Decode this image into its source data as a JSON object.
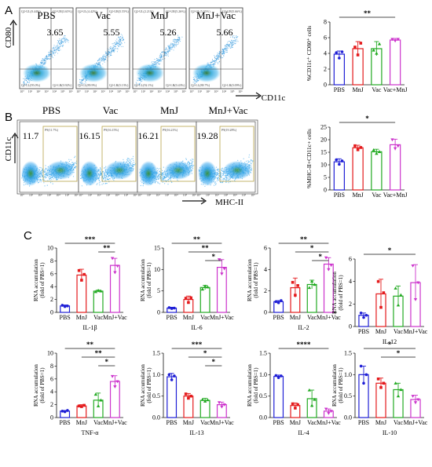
{
  "figure": {
    "panels": {
      "A": {
        "letter": "A"
      },
      "B": {
        "letter": "B"
      },
      "C": {
        "letter": "C"
      }
    }
  },
  "panelA": {
    "flow": {
      "y_axis": "CD80",
      "x_axis": "CD11c",
      "plots": [
        {
          "title": "PBS",
          "value": "3.65"
        },
        {
          "title": "Vac",
          "value": "5.55"
        },
        {
          "title": "MnJ",
          "value": "5.26"
        },
        {
          "title": "MnJ+Vac",
          "value": "5.66"
        }
      ]
    },
    "quad_labels": [
      {
        "ul": "Q2-UL(0.44%)",
        "ur": "Q2-UR(3.65%)",
        "ll": "Q2-LL(95.0%)",
        "lr": "Q2-LR(0.92%)"
      },
      {
        "ul": "Q2-UL(4.42%)",
        "ur": "Q2-UR(5.55%)",
        "ll": "Q2-LL(89.9%)",
        "lr": "Q2-LR(0.13%)"
      },
      {
        "ul": "Q2-UL(2.21%)",
        "ur": "Q2-UR(5.26%)",
        "ll": "Q2-LL(92.1%)",
        "lr": "Q2-LR(0.43%)"
      },
      {
        "ul": "Q2-UL(5.55%)",
        "ur": "Q2-UR(5.66%)",
        "ll": "Q2-LL(88.7%)",
        "lr": "Q2-LR(0.09%)"
      }
    ]
  },
  "panelB": {
    "flow": {
      "y_axis": "CD11c",
      "x_axis": "MHC-II",
      "plots": [
        {
          "title": "PBS",
          "value": "11.7",
          "gate": "P9(11.7%)"
        },
        {
          "title": "Vac",
          "value": "16.15",
          "gate": "P9(16.15%)"
        },
        {
          "title": "MnJ",
          "value": "16.21",
          "gate": "P9(16.21%)"
        },
        {
          "title": "MnJ+Vac",
          "value": "19.28",
          "gate": "P9(19.28%)"
        }
      ]
    }
  },
  "tick_labels": {
    "flow_x": [
      "10⁰",
      "10¹",
      "10²",
      "10³",
      "10⁴",
      "10⁵",
      "10⁶"
    ]
  },
  "chart_data": [
    {
      "type": "bar",
      "panel": "A",
      "ylabel": "%CD11c⁺ CD80⁺ cells",
      "categories": [
        "PBS",
        "MnJ",
        "Vac",
        "Vac+MnJ"
      ],
      "values": [
        3.9,
        4.6,
        4.6,
        5.7
      ],
      "errors": [
        0.4,
        0.9,
        0.9,
        0.2
      ],
      "points": [
        [
          4.1,
          3.4,
          4.2
        ],
        [
          4.8,
          3.8,
          5.3
        ],
        [
          4.4,
          4.0,
          5.2
        ],
        [
          5.8,
          5.6,
          5.8
        ]
      ],
      "ylim": [
        0,
        8
      ],
      "yticks": [
        0,
        2,
        4,
        6,
        8
      ],
      "colors": [
        "#1f1fd6",
        "#e41a1c",
        "#22aa22",
        "#cc33cc"
      ],
      "significance": [
        {
          "from": 0,
          "to": 3,
          "label": "**"
        }
      ]
    },
    {
      "type": "bar",
      "panel": "B",
      "ylabel": "%MHC-II+CD11c+ cells",
      "categories": [
        "PBS",
        "MnJ",
        "Vac",
        "Vac+MnJ"
      ],
      "values": [
        11.2,
        16.8,
        15.2,
        18.0
      ],
      "errors": [
        1.2,
        1.0,
        1.0,
        2.2
      ],
      "points": [
        [
          12.0,
          10.2,
          11.6
        ],
        [
          17.6,
          16.0,
          16.9
        ],
        [
          15.9,
          14.5,
          15.2
        ],
        [
          20.0,
          16.5,
          17.5
        ]
      ],
      "ylim": [
        0,
        25
      ],
      "yticks": [
        0,
        5,
        10,
        15,
        20,
        25
      ],
      "colors": [
        "#1f1fd6",
        "#e41a1c",
        "#22aa22",
        "#cc33cc"
      ],
      "significance": [
        {
          "from": 0,
          "to": 3,
          "label": "*"
        }
      ]
    },
    {
      "type": "bar",
      "panel": "C",
      "title": "IL-1β",
      "ylabel": "RNA accumulation (fold of PBS=1)",
      "categories": [
        "PBS",
        "MnJ",
        "Vac",
        "MnJ+Vac"
      ],
      "values": [
        1.0,
        5.8,
        3.3,
        7.3
      ],
      "errors": [
        0.15,
        0.9,
        0.15,
        1.1
      ],
      "points": [
        [
          1.1,
          0.9,
          1.0
        ],
        [
          6.5,
          5.0,
          5.9
        ],
        [
          3.2,
          3.4,
          3.3
        ],
        [
          8.4,
          6.2,
          7.2
        ]
      ],
      "ylim": [
        0,
        10
      ],
      "yticks": [
        0,
        2,
        4,
        6,
        8,
        10
      ],
      "colors": [
        "#1f1fd6",
        "#e41a1c",
        "#22aa22",
        "#cc33cc"
      ],
      "significance": [
        {
          "from": 0,
          "to": 3,
          "label": "***"
        },
        {
          "from": 2,
          "to": 3,
          "label": "**"
        }
      ]
    },
    {
      "type": "bar",
      "panel": "C",
      "title": "IL-6",
      "ylabel": "RNA accumulation (fold of PBS=1)",
      "categories": [
        "PBS",
        "MnJ",
        "Vac",
        "MnJ+Vac"
      ],
      "values": [
        1.0,
        3.0,
        5.8,
        10.5
      ],
      "errors": [
        0.2,
        0.8,
        0.5,
        1.8
      ],
      "points": [
        [
          1.1,
          0.9,
          1.0
        ],
        [
          3.3,
          2.3,
          3.4
        ],
        [
          5.4,
          6.1,
          5.9
        ],
        [
          12.3,
          9.0,
          10.2
        ]
      ],
      "ylim": [
        0,
        15
      ],
      "yticks": [
        0,
        5,
        10,
        15
      ],
      "colors": [
        "#1f1fd6",
        "#e41a1c",
        "#22aa22",
        "#cc33cc"
      ],
      "significance": [
        {
          "from": 0,
          "to": 3,
          "label": "**"
        },
        {
          "from": 1,
          "to": 3,
          "label": "**"
        },
        {
          "from": 2,
          "to": 3,
          "label": "*"
        }
      ]
    },
    {
      "type": "bar",
      "panel": "C",
      "title": "IL-2",
      "ylabel": "RNA accumulation (fold of PBS=1)",
      "categories": [
        "PBS",
        "MnJ",
        "Vac",
        "MnJ+Vac"
      ],
      "values": [
        1.0,
        2.3,
        2.6,
        4.5
      ],
      "errors": [
        0.1,
        0.9,
        0.4,
        0.6
      ],
      "points": [
        [
          1.0,
          0.9,
          1.1
        ],
        [
          2.8,
          1.6,
          2.5
        ],
        [
          2.3,
          2.9,
          2.6
        ],
        [
          5.1,
          4.0,
          4.4
        ]
      ],
      "ylim": [
        0,
        6
      ],
      "yticks": [
        0,
        2,
        4,
        6
      ],
      "colors": [
        "#1f1fd6",
        "#e41a1c",
        "#22aa22",
        "#cc33cc"
      ],
      "significance": [
        {
          "from": 0,
          "to": 3,
          "label": "**"
        },
        {
          "from": 1,
          "to": 3,
          "label": "*"
        },
        {
          "from": 2,
          "to": 3,
          "label": "*"
        }
      ]
    },
    {
      "type": "bar",
      "panel": "C",
      "title": "IL-12",
      "ylabel": "RNA accumulation (fold of PBS=1)",
      "categories": [
        "PBS",
        "MnJ",
        "Vac",
        "MnJ+Vac"
      ],
      "values": [
        1.0,
        2.9,
        2.7,
        3.9
      ],
      "errors": [
        0.2,
        1.3,
        0.9,
        1.6
      ],
      "points": [
        [
          1.2,
          0.8,
          1.0
        ],
        [
          4.0,
          1.7,
          3.0
        ],
        [
          3.4,
          1.9,
          2.8
        ],
        [
          5.4,
          2.4,
          3.9
        ]
      ],
      "ylim": [
        0,
        6
      ],
      "yticks": [
        0,
        2,
        4,
        6
      ],
      "colors": [
        "#1f1fd6",
        "#e41a1c",
        "#22aa22",
        "#cc33cc"
      ],
      "significance": [
        {
          "from": 0,
          "to": 3,
          "label": "*"
        }
      ]
    },
    {
      "type": "bar",
      "panel": "C",
      "title": "TNF-α",
      "ylabel": "RNA accumulation (fold of PBS=1)",
      "categories": [
        "PBS",
        "MnJ",
        "Vac",
        "MnJ+Vac"
      ],
      "values": [
        1.0,
        1.8,
        2.7,
        5.6
      ],
      "errors": [
        0.1,
        0.2,
        1.1,
        0.9
      ],
      "points": [
        [
          1.0,
          0.9,
          1.1
        ],
        [
          1.8,
          1.7,
          1.9
        ],
        [
          3.6,
          1.8,
          2.7
        ],
        [
          6.4,
          4.8,
          5.6
        ]
      ],
      "ylim": [
        0,
        10
      ],
      "yticks": [
        0,
        2,
        4,
        6,
        8,
        10
      ],
      "colors": [
        "#1f1fd6",
        "#e41a1c",
        "#22aa22",
        "#cc33cc"
      ],
      "significance": [
        {
          "from": 0,
          "to": 3,
          "label": "**"
        },
        {
          "from": 1,
          "to": 3,
          "label": "**"
        },
        {
          "from": 2,
          "to": 3,
          "label": "*"
        }
      ]
    },
    {
      "type": "bar",
      "panel": "C",
      "title": "IL-13",
      "ylabel": "RNA accumulation (fold of PBS=1)",
      "categories": [
        "PBS",
        "MnJ",
        "Vac",
        "MnJ+Vac"
      ],
      "values": [
        0.95,
        0.5,
        0.4,
        0.3
      ],
      "errors": [
        0.08,
        0.06,
        0.05,
        0.06
      ],
      "points": [
        [
          1.0,
          0.88,
          0.97
        ],
        [
          0.55,
          0.45,
          0.5
        ],
        [
          0.42,
          0.38,
          0.41
        ],
        [
          0.35,
          0.25,
          0.3
        ]
      ],
      "ylim": [
        0,
        1.5
      ],
      "yticks": [
        0.0,
        0.5,
        1.0,
        1.5
      ],
      "colors": [
        "#1f1fd6",
        "#e41a1c",
        "#22aa22",
        "#cc33cc"
      ],
      "significance": [
        {
          "from": 0,
          "to": 3,
          "label": "***"
        },
        {
          "from": 1,
          "to": 3,
          "label": "*"
        },
        {
          "from": 2,
          "to": 3,
          "label": "*"
        }
      ]
    },
    {
      "type": "bar",
      "panel": "C",
      "title": "IL-4",
      "ylabel": "RNA accumulation (fold of PBS=1)",
      "categories": [
        "PBS",
        "MnJ",
        "Vac",
        "MnJ+Vac"
      ],
      "values": [
        0.96,
        0.28,
        0.44,
        0.15
      ],
      "errors": [
        0.03,
        0.06,
        0.2,
        0.05
      ],
      "points": [
        [
          0.98,
          0.93,
          0.97
        ],
        [
          0.32,
          0.22,
          0.3
        ],
        [
          0.64,
          0.28,
          0.42
        ],
        [
          0.2,
          0.1,
          0.15
        ]
      ],
      "ylim": [
        0,
        1.5
      ],
      "yticks": [
        0.0,
        0.5,
        1.0,
        1.5
      ],
      "colors": [
        "#1f1fd6",
        "#e41a1c",
        "#22aa22",
        "#cc33cc"
      ],
      "significance": [
        {
          "from": 0,
          "to": 3,
          "label": "****"
        }
      ]
    },
    {
      "type": "bar",
      "panel": "C",
      "title": "IL-10",
      "ylabel": "RNA accumulation (fold of PBS=1)",
      "categories": [
        "PBS",
        "MnJ",
        "Vac",
        "MnJ+Vac"
      ],
      "values": [
        1.0,
        0.8,
        0.65,
        0.42
      ],
      "errors": [
        0.2,
        0.12,
        0.15,
        0.1
      ],
      "points": [
        [
          1.2,
          0.8,
          1.0
        ],
        [
          0.9,
          0.7,
          0.8
        ],
        [
          0.8,
          0.5,
          0.65
        ],
        [
          0.5,
          0.35,
          0.42
        ]
      ],
      "ylim": [
        0,
        1.5
      ],
      "yticks": [
        0.0,
        0.5,
        1.0,
        1.5
      ],
      "colors": [
        "#1f1fd6",
        "#e41a1c",
        "#22aa22",
        "#cc33cc"
      ],
      "significance": [
        {
          "from": 0,
          "to": 3,
          "label": "*"
        },
        {
          "from": 1,
          "to": 3,
          "label": "*"
        }
      ]
    }
  ]
}
